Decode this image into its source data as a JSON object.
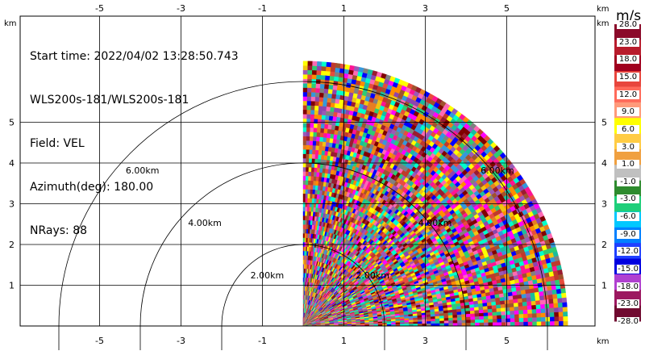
{
  "info": {
    "start_time": "Start time: 2022/04/02 13:28:50.743",
    "instrument": "WLS200s-181/WLS200s-181",
    "field": "Field: VEL",
    "azimuth": "Azimuth(deg): 180.00",
    "nrays": "NRays: 88"
  },
  "axes": {
    "unit": "km",
    "x_ticks": [
      "-5",
      "-3",
      "-1",
      "1",
      "3",
      "5"
    ],
    "y_ticks": [
      "1",
      "2",
      "3",
      "4",
      "5"
    ],
    "xlim": [
      -6.0,
      6.2
    ],
    "ylim": [
      0,
      6.0
    ]
  },
  "range_rings": [
    {
      "label": "2.00km",
      "range_km": 2
    },
    {
      "label": "4.00km",
      "range_km": 4
    },
    {
      "label": "6.00km",
      "range_km": 6
    }
  ],
  "colorbar": {
    "unit": "m/s",
    "labels": [
      "28.0",
      "23.0",
      "18.0",
      "15.0",
      "12.0",
      "9.0",
      "6.0",
      "3.0",
      "1.0",
      "-1.0",
      "-3.0",
      "-6.0",
      "-9.0",
      "-12.0",
      "-15.0",
      "-18.0",
      "-23.0",
      "-28.0"
    ],
    "colors": [
      "#8b0a2a",
      "#b81c2c",
      "#a0001e",
      "#e8463d",
      "#ff6a5a",
      "#ff9a7a",
      "#ffff00",
      "#ffcc44",
      "#f0a040",
      "#c0c0c0",
      "#2e8b2e",
      "#1fcf7a",
      "#00c8ff",
      "#0080ff",
      "#2040ff",
      "#0000e0",
      "#b040d0",
      "#9c1860",
      "#700a30"
    ]
  },
  "sweep": {
    "field": "VEL",
    "max_range_km": 6.5,
    "azimuth_start_deg": 0,
    "azimuth_end_deg": 90,
    "nrays": 88,
    "palette": [
      "#9b1b30",
      "#c0392b",
      "#e74c3c",
      "#ff69b4",
      "#8e44ad",
      "#9b59b6",
      "#ff00ff",
      "#f1c40f",
      "#ffff00",
      "#2ecc71",
      "#1abc9c",
      "#00ffcc",
      "#3498db",
      "#0000ff",
      "#e67e22",
      "#ff8c00",
      "#808080",
      "#a0522d",
      "#800000",
      "#ff1493"
    ]
  }
}
